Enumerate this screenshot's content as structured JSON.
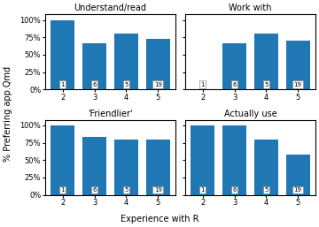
{
  "chart_data": [
    {
      "type": "bar",
      "title": "Understand/read",
      "categories": [
        "2",
        "3",
        "4",
        "5"
      ],
      "values": [
        100,
        67,
        80,
        73
      ],
      "counts": [
        1,
        6,
        5,
        19
      ],
      "ylim": [
        0,
        108
      ],
      "yticks": [
        {
          "value": 0,
          "label": "0%"
        },
        {
          "value": 25,
          "label": "25%"
        },
        {
          "value": 50,
          "label": "50%"
        },
        {
          "value": 75,
          "label": "75%"
        },
        {
          "value": 100,
          "label": "100%"
        }
      ],
      "grid": false
    },
    {
      "type": "bar",
      "title": "Work with",
      "categories": [
        "2",
        "3",
        "4",
        "5"
      ],
      "values": [
        0,
        67,
        80,
        70
      ],
      "counts": [
        1,
        6,
        5,
        19
      ],
      "ylim": [
        0,
        108
      ],
      "yticks": [
        {
          "value": 0,
          "label": "0%"
        },
        {
          "value": 25,
          "label": "25%"
        },
        {
          "value": 50,
          "label": "50%"
        },
        {
          "value": 75,
          "label": "75%"
        },
        {
          "value": 100,
          "label": "100%"
        }
      ],
      "grid": false,
      "tick_labels": "x"
    },
    {
      "type": "bar",
      "title": "'Friendlier'",
      "categories": [
        "2",
        "3",
        "4",
        "5"
      ],
      "values": [
        100,
        83,
        80,
        79
      ],
      "counts": [
        1,
        6,
        5,
        19
      ],
      "ylim": [
        0,
        108
      ],
      "yticks": [
        {
          "value": 0,
          "label": "0%"
        },
        {
          "value": 25,
          "label": "25%"
        },
        {
          "value": 50,
          "label": "50%"
        },
        {
          "value": 75,
          "label": "75%"
        },
        {
          "value": 100,
          "label": "100%"
        }
      ],
      "grid": false
    },
    {
      "type": "bar",
      "title": "Actually use",
      "categories": [
        "2",
        "3",
        "4",
        "5"
      ],
      "values": [
        100,
        100,
        80,
        58
      ],
      "counts": [
        1,
        6,
        5,
        19
      ],
      "ylim": [
        0,
        108
      ],
      "yticks": [
        {
          "value": 0,
          "label": "0%"
        },
        {
          "value": 25,
          "label": "25%"
        },
        {
          "value": 50,
          "label": "50%"
        },
        {
          "value": 75,
          "label": "75%"
        },
        {
          "value": 100,
          "label": "100%"
        }
      ],
      "grid": false,
      "tick_labels": "x"
    }
  ],
  "xlabel": "Experience with R",
  "ylabel": "% Preferring app.Qmd"
}
